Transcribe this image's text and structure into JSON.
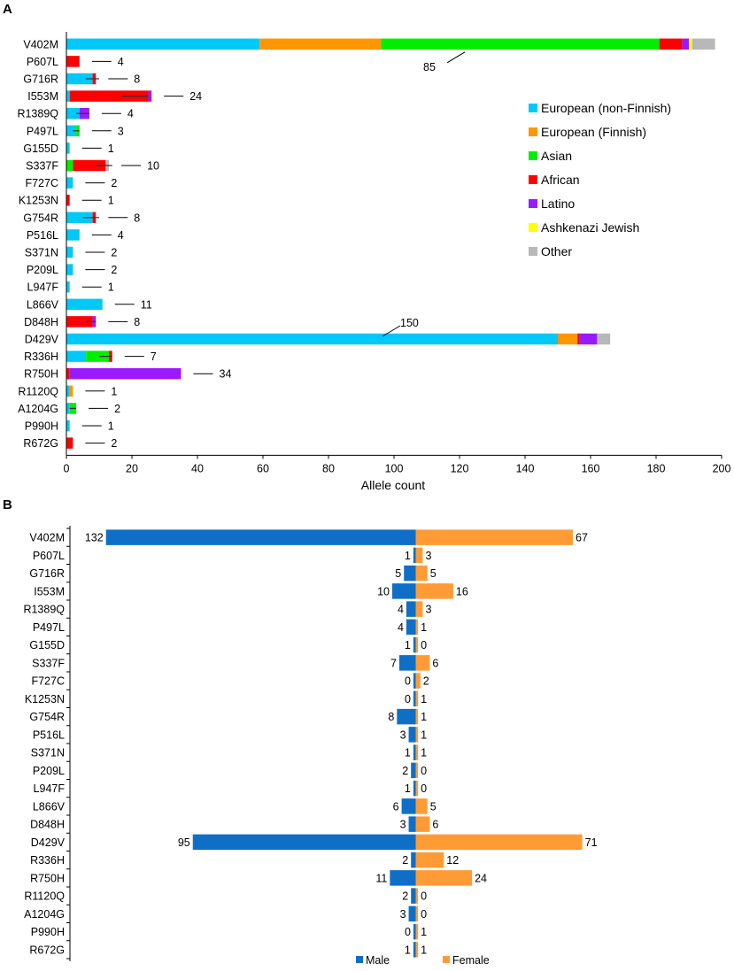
{
  "chart_data": [
    {
      "panel": "A",
      "type": "bar",
      "orientation": "horizontal",
      "stacked": true,
      "xlabel": "Allele count",
      "xlim": [
        0,
        200
      ],
      "xticks": [
        "0",
        "20",
        "40",
        "60",
        "80",
        "100",
        "120",
        "140",
        "160",
        "180",
        "200"
      ],
      "legend_position": "right",
      "series": [
        {
          "name": "European (non-Finnish)",
          "color": "#00c8f8"
        },
        {
          "name": "European (Finnish)",
          "color": "#ff9600"
        },
        {
          "name": "Asian",
          "color": "#00ee00"
        },
        {
          "name": "African",
          "color": "#ff0000"
        },
        {
          "name": "Latino",
          "color": "#9a1aff"
        },
        {
          "name": "Ashkenazi Jewish",
          "color": "#ffff00"
        },
        {
          "name": "Other",
          "color": "#b8b8b8"
        }
      ],
      "rows": [
        {
          "variant": "V402M",
          "label": "85",
          "values": [
            59,
            37,
            85,
            7,
            2,
            1,
            7
          ]
        },
        {
          "variant": "P607L",
          "label": "4",
          "values": [
            0,
            0,
            0,
            4,
            0,
            0,
            0
          ]
        },
        {
          "variant": "G716R",
          "label": "8",
          "values": [
            8,
            0,
            0,
            1,
            0,
            0,
            0
          ]
        },
        {
          "variant": "I553M",
          "label": "24",
          "values": [
            1,
            0,
            0,
            24,
            1,
            0,
            0
          ]
        },
        {
          "variant": "R1389Q",
          "label": "4",
          "values": [
            4,
            0,
            0,
            0,
            3,
            0,
            0
          ]
        },
        {
          "variant": "P497L",
          "label": "3",
          "values": [
            3,
            0,
            1,
            0,
            0,
            0,
            0
          ]
        },
        {
          "variant": "G155D",
          "label": "1",
          "values": [
            1,
            0,
            0,
            0,
            0,
            0,
            0
          ]
        },
        {
          "variant": "S337F",
          "label": "10",
          "values": [
            0,
            0,
            2,
            10,
            0,
            0,
            1
          ]
        },
        {
          "variant": "F727C",
          "label": "2",
          "values": [
            2,
            0,
            0,
            0,
            0,
            0,
            0
          ]
        },
        {
          "variant": "K1253N",
          "label": "1",
          "values": [
            0,
            0,
            0,
            1,
            0,
            0,
            0
          ]
        },
        {
          "variant": "G754R",
          "label": "8",
          "values": [
            8,
            0,
            0,
            1,
            0,
            0,
            0
          ]
        },
        {
          "variant": "P516L",
          "label": "4",
          "values": [
            4,
            0,
            0,
            0,
            0,
            0,
            0
          ]
        },
        {
          "variant": "S371N",
          "label": "2",
          "values": [
            2,
            0,
            0,
            0,
            0,
            0,
            0
          ]
        },
        {
          "variant": "P209L",
          "label": "2",
          "values": [
            2,
            0,
            0,
            0,
            0,
            0,
            0
          ]
        },
        {
          "variant": "L947F",
          "label": "1",
          "values": [
            1,
            0,
            0,
            0,
            0,
            0,
            0
          ]
        },
        {
          "variant": "L866V",
          "label": "11",
          "values": [
            11,
            0,
            0,
            0,
            0,
            0,
            0
          ]
        },
        {
          "variant": "D848H",
          "label": "8",
          "values": [
            0,
            0,
            0,
            8,
            1,
            0,
            0
          ]
        },
        {
          "variant": "D429V",
          "label": "150",
          "values": [
            150,
            6,
            0,
            0.5,
            5.5,
            0,
            4
          ]
        },
        {
          "variant": "R336H",
          "label": "7",
          "values": [
            6,
            0,
            7,
            1,
            0,
            0,
            0
          ]
        },
        {
          "variant": "R750H",
          "label": "34",
          "values": [
            0,
            0,
            0,
            1,
            34,
            0,
            0
          ]
        },
        {
          "variant": "R1120Q",
          "label": "1",
          "values": [
            1,
            1,
            0,
            0,
            0,
            0,
            0
          ]
        },
        {
          "variant": "A1204G",
          "label": "2",
          "values": [
            1,
            0,
            2,
            0,
            0,
            0,
            0
          ]
        },
        {
          "variant": "P990H",
          "label": "1",
          "values": [
            1,
            0,
            0,
            0,
            0,
            0,
            0
          ]
        },
        {
          "variant": "R672G",
          "label": "2",
          "values": [
            0,
            0,
            0,
            2,
            0,
            0,
            0
          ]
        }
      ]
    },
    {
      "panel": "B",
      "type": "bar",
      "orientation": "horizontal",
      "diverging": true,
      "legend_position": "bottom",
      "series": [
        {
          "name": "Male",
          "color": "#0f6fc6"
        },
        {
          "name": "Female",
          "color": "#ff9b35"
        }
      ],
      "categories": [
        "V402M",
        "P607L",
        "G716R",
        "I553M",
        "R1389Q",
        "P497L",
        "G155D",
        "S337F",
        "F727C",
        "K1253N",
        "G754R",
        "P516L",
        "S371N",
        "P209L",
        "L947F",
        "L866V",
        "D848H",
        "D429V",
        "R336H",
        "R750H",
        "R1120Q",
        "A1204G",
        "P990H",
        "R672G"
      ],
      "male": [
        132,
        1,
        5,
        10,
        4,
        4,
        1,
        7,
        0,
        0,
        8,
        3,
        1,
        2,
        1,
        6,
        3,
        95,
        2,
        11,
        2,
        3,
        0,
        1
      ],
      "female": [
        67,
        3,
        5,
        16,
        3,
        1,
        0,
        6,
        2,
        1,
        1,
        1,
        1,
        0,
        0,
        5,
        6,
        71,
        12,
        24,
        0,
        0,
        1,
        1
      ]
    }
  ]
}
